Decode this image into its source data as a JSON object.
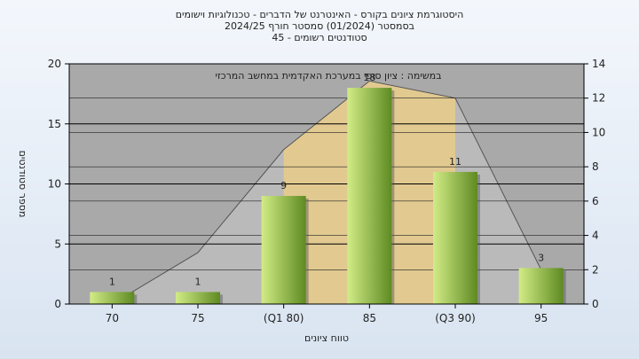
{
  "chart_data": {
    "type": "bar",
    "title_lines": [
      "היסטוגרמת ציונים בקורס - האינטרנט של הדברים - טכנולוגיות וישומים",
      "בסמסטר   (01/2024)   סמסטר חורף   2024/25",
      "סטודנטים רשומים - 45"
    ],
    "categories": [
      "70",
      "75",
      "(Q1 80)",
      "85",
      "(Q3 90)",
      "95"
    ],
    "values": [
      1,
      1,
      9,
      18,
      11,
      3
    ],
    "data_labels": [
      "1",
      "1",
      "9",
      "18",
      "11",
      "3"
    ],
    "xlabel": "טווח ציונים",
    "ylabel": "מספר סטודנטים",
    "ylim": [
      0,
      20
    ],
    "yticks": [
      0,
      5,
      10,
      15,
      20
    ],
    "y2lim": [
      0,
      14
    ],
    "y2ticks": [
      0,
      2,
      4,
      6,
      8,
      10,
      12,
      14
    ],
    "annotation": "במשימה : ציון סופי במערכת האקדמית במחשב המרכזי",
    "background_area_secondary_axis": [
      0,
      3,
      9,
      13,
      12,
      2
    ],
    "quartile_band": {
      "from_category": "(Q1 80)",
      "to_category": "(Q3 90)"
    },
    "grid": true,
    "legend": "none",
    "colors": {
      "plot_bg": "#a9a9a9",
      "area_fill": "#c8c8c8",
      "band_fill": "#ffc94d",
      "bar_light": "#d2ec86",
      "bar_dark": "#5e8a22",
      "frame_bg_top": "#f3f7fc",
      "frame_bg_bottom": "#d9e4f1"
    }
  }
}
